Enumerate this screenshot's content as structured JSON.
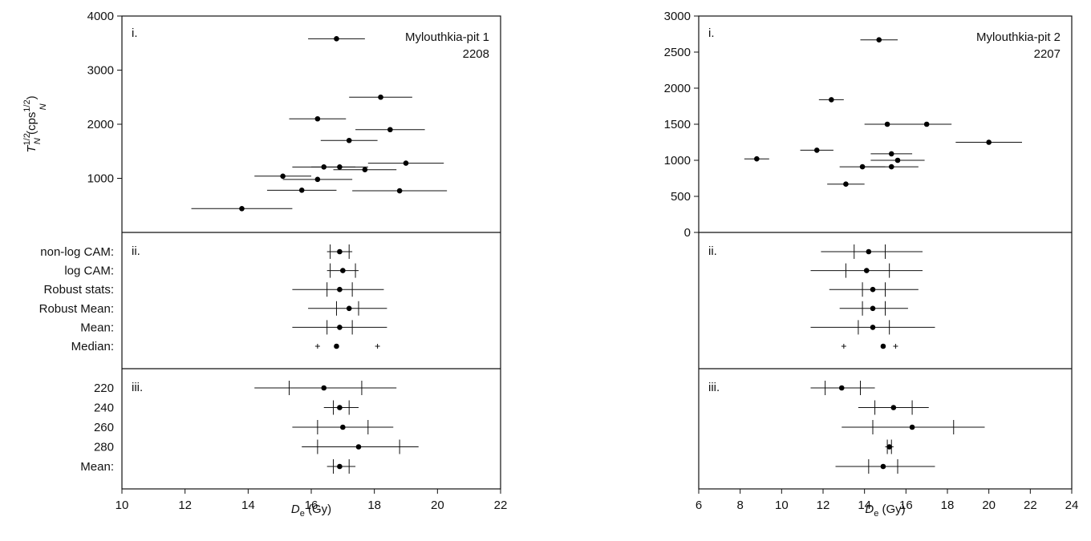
{
  "chart_data": [
    {
      "type": "scatter",
      "subtype": "error-bar",
      "xlabel": {
        "main": "D",
        "sub": "e",
        "unit": " (Gy)"
      },
      "xlim": [
        10,
        22
      ],
      "x_ticks": [
        "10",
        "12",
        "14",
        "16",
        "18",
        "20",
        "22"
      ],
      "panels": [
        {
          "label": "i.",
          "title": "Mylouthkia-pit 1",
          "subtitle": "2208",
          "ylabel": {
            "main": "T",
            "sup": "1/2",
            "sub": "N",
            "unit_pre": " (cps",
            "unit_sup": "1/2",
            "unit_post": ")",
            "sub2": "N"
          },
          "ylim": [
            0,
            4000
          ],
          "y_ticks": [
            "1000",
            "2000",
            "3000",
            "4000"
          ],
          "points": [
            {
              "x": 16.8,
              "y": 3580,
              "err": 0.9
            },
            {
              "x": 18.2,
              "y": 2500,
              "err": 1.0
            },
            {
              "x": 16.2,
              "y": 2100,
              "err": 0.9
            },
            {
              "x": 18.5,
              "y": 1900,
              "err": 1.1
            },
            {
              "x": 17.2,
              "y": 1700,
              "err": 0.9
            },
            {
              "x": 19.0,
              "y": 1280,
              "err": 1.2
            },
            {
              "x": 16.4,
              "y": 1210,
              "err": 1.0
            },
            {
              "x": 16.9,
              "y": 1210,
              "err": 0.9
            },
            {
              "x": 17.7,
              "y": 1160,
              "err": 1.0
            },
            {
              "x": 15.1,
              "y": 1040,
              "err": 0.9
            },
            {
              "x": 16.2,
              "y": 980,
              "err": 1.1
            },
            {
              "x": 15.7,
              "y": 780,
              "err": 1.1
            },
            {
              "x": 18.8,
              "y": 770,
              "err": 1.5
            },
            {
              "x": 13.8,
              "y": 440,
              "err": 1.6
            }
          ]
        },
        {
          "label": "ii.",
          "rows": [
            {
              "name": "non-log CAM:",
              "x": 16.9,
              "lo": 16.5,
              "hi": 17.3,
              "ilo": 16.6,
              "ihi": 17.2
            },
            {
              "name": "log CAM:",
              "x": 17.0,
              "lo": 16.5,
              "hi": 17.5,
              "ilo": 16.6,
              "ihi": 17.4
            },
            {
              "name": "Robust stats:",
              "x": 16.9,
              "lo": 15.4,
              "hi": 18.3,
              "ilo": 16.5,
              "ihi": 17.3
            },
            {
              "name": "Robust Mean:",
              "x": 17.2,
              "lo": 15.9,
              "hi": 18.4,
              "ilo": 16.8,
              "ihi": 17.5
            },
            {
              "name": "Mean:",
              "x": 16.9,
              "lo": 15.4,
              "hi": 18.4,
              "ilo": 16.5,
              "ihi": 17.3
            },
            {
              "name": "Median:",
              "x": 16.8,
              "lo": null,
              "hi": null,
              "ilo": 16.2,
              "ihi": 18.1
            }
          ]
        },
        {
          "label": "iii.",
          "rows": [
            {
              "name": "220",
              "x": 16.4,
              "lo": 14.2,
              "hi": 18.7,
              "ilo": 15.3,
              "ihi": 17.6
            },
            {
              "name": "240",
              "x": 16.9,
              "lo": 16.4,
              "hi": 17.5,
              "ilo": 16.7,
              "ihi": 17.2
            },
            {
              "name": "260",
              "x": 17.0,
              "lo": 15.4,
              "hi": 18.6,
              "ilo": 16.2,
              "ihi": 17.8
            },
            {
              "name": "280",
              "x": 17.5,
              "lo": 15.7,
              "hi": 19.4,
              "ilo": 16.2,
              "ihi": 18.8
            },
            {
              "name": "Mean:",
              "x": 16.9,
              "lo": 16.5,
              "hi": 17.4,
              "ilo": 16.7,
              "ihi": 17.2
            }
          ]
        }
      ]
    },
    {
      "type": "scatter",
      "subtype": "error-bar",
      "xlabel": {
        "main": "D",
        "sub": "e",
        "unit": " (Gy)"
      },
      "xlim": [
        6,
        24
      ],
      "x_ticks": [
        "6",
        "8",
        "10",
        "12",
        "14",
        "16",
        "18",
        "20",
        "22",
        "24"
      ],
      "panels": [
        {
          "label": "i.",
          "title": "Mylouthkia-pit 2",
          "subtitle": "2207",
          "ylim": [
            0,
            3000
          ],
          "y_ticks": [
            "0",
            "500",
            "1000",
            "1500",
            "2000",
            "2500",
            "3000"
          ],
          "points": [
            {
              "x": 14.7,
              "y": 2670,
              "err": 0.9
            },
            {
              "x": 12.4,
              "y": 1840,
              "err": 0.6
            },
            {
              "x": 15.1,
              "y": 1500,
              "err": 1.1
            },
            {
              "x": 17.0,
              "y": 1500,
              "err": 1.2
            },
            {
              "x": 20.0,
              "y": 1250,
              "err": 1.6
            },
            {
              "x": 11.7,
              "y": 1140,
              "err": 0.8
            },
            {
              "x": 15.3,
              "y": 1090,
              "err": 1.0
            },
            {
              "x": 8.8,
              "y": 1020,
              "err": 0.6
            },
            {
              "x": 15.6,
              "y": 1000,
              "err": 1.3
            },
            {
              "x": 13.9,
              "y": 910,
              "err": 1.1
            },
            {
              "x": 15.3,
              "y": 910,
              "err": 1.3
            },
            {
              "x": 13.1,
              "y": 670,
              "err": 0.9
            }
          ]
        },
        {
          "label": "ii.",
          "rows": [
            {
              "x": 14.2,
              "lo": 11.9,
              "hi": 16.8,
              "ilo": 13.5,
              "ihi": 15.0
            },
            {
              "x": 14.1,
              "lo": 11.4,
              "hi": 16.8,
              "ilo": 13.1,
              "ihi": 15.2
            },
            {
              "x": 14.4,
              "lo": 12.3,
              "hi": 16.6,
              "ilo": 13.9,
              "ihi": 15.0
            },
            {
              "x": 14.4,
              "lo": 12.8,
              "hi": 16.1,
              "ilo": 13.9,
              "ihi": 15.0
            },
            {
              "x": 14.4,
              "lo": 11.4,
              "hi": 17.4,
              "ilo": 13.7,
              "ihi": 15.2
            },
            {
              "x": 14.9,
              "lo": null,
              "hi": null,
              "ilo": 13.0,
              "ihi": 15.5
            }
          ]
        },
        {
          "label": "iii.",
          "rows": [
            {
              "x": 12.9,
              "lo": 11.4,
              "hi": 14.5,
              "ilo": 12.1,
              "ihi": 13.8
            },
            {
              "x": 15.4,
              "lo": 13.7,
              "hi": 17.1,
              "ilo": 14.5,
              "ihi": 16.3
            },
            {
              "x": 16.3,
              "lo": 12.9,
              "hi": 19.8,
              "ilo": 14.4,
              "ihi": 18.3
            },
            {
              "x": 15.2,
              "lo": 15.0,
              "hi": 15.4,
              "ilo": 15.1,
              "ihi": 15.3
            },
            {
              "x": 14.9,
              "lo": 12.6,
              "hi": 17.4,
              "ilo": 14.2,
              "ihi": 15.6
            }
          ]
        }
      ]
    }
  ]
}
